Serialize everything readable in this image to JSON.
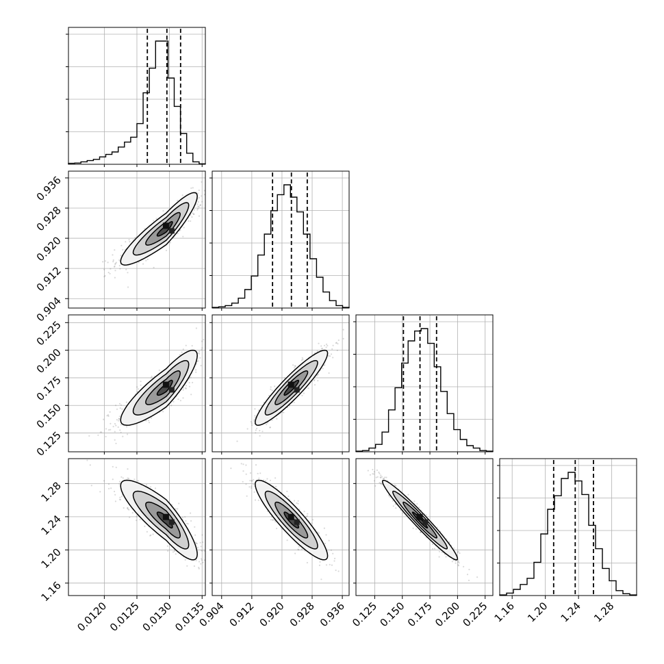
{
  "chart_data": {
    "type": "corner",
    "parameters": [
      {
        "index": 0,
        "range": [
          0.01145,
          0.01355
        ],
        "median": 0.01296,
        "q16": 0.01266,
        "q84": 0.01317,
        "ticks": [
          "0.0120",
          "0.0125",
          "0.0130",
          "0.0135"
        ],
        "hist_counts": [
          0.8,
          1,
          2,
          3,
          4,
          6,
          8,
          10,
          14,
          18,
          22,
          33,
          58,
          78,
          100,
          100,
          70,
          47,
          25,
          9,
          2,
          0.4
        ]
      },
      {
        "index": 1,
        "range": [
          0.9015,
          0.9378
        ],
        "median": 0.9225,
        "q16": 0.9175,
        "q84": 0.9267,
        "ticks": [
          "0.904",
          "0.912",
          "0.920",
          "0.928",
          "0.936"
        ],
        "hist_counts": [
          0.5,
          1,
          2,
          4,
          8,
          15,
          26,
          43,
          60,
          79,
          92,
          100,
          90,
          78,
          60,
          40,
          25,
          13,
          6,
          2,
          0.5
        ]
      },
      {
        "index": 2,
        "range": [
          0.108,
          0.232
        ],
        "median": 0.166,
        "q16": 0.151,
        "q84": 0.181,
        "ticks": [
          "0.125",
          "0.150",
          "0.175",
          "0.200",
          "0.225"
        ],
        "hist_counts": [
          0.5,
          1,
          3,
          6,
          16,
          34,
          52,
          72,
          90,
          98,
          100,
          88,
          69,
          49,
          31,
          18,
          10,
          5,
          3,
          1,
          0.5
        ]
      },
      {
        "index": 3,
        "range": [
          1.145,
          1.31
        ],
        "median": 1.236,
        "q16": 1.21,
        "q84": 1.258,
        "ticks": [
          "1.16",
          "1.20",
          "1.24",
          "1.28"
        ],
        "hist_counts": [
          0.5,
          2,
          5,
          9,
          14,
          27,
          50,
          70,
          81,
          95,
          100,
          93,
          82,
          57,
          38,
          22,
          12,
          4,
          1.5,
          0.5
        ]
      }
    ],
    "pairs": [
      {
        "row": 1,
        "col": 0,
        "mean": [
          0.01295,
          0.9225
        ],
        "sd": [
          0.00028,
          0.0048
        ],
        "corr": 0.9,
        "skew": true
      },
      {
        "row": 2,
        "col": 0,
        "mean": [
          0.01295,
          0.166
        ],
        "sd": [
          0.00028,
          0.017
        ],
        "corr": 0.86,
        "skew": true
      },
      {
        "row": 2,
        "col": 1,
        "mean": [
          0.9225,
          0.166
        ],
        "sd": [
          0.0048,
          0.017
        ],
        "corr": 0.92,
        "skew": false
      },
      {
        "row": 3,
        "col": 0,
        "mean": [
          0.01295,
          1.236
        ],
        "sd": [
          0.00028,
          0.024
        ],
        "corr": -0.86,
        "skew": true
      },
      {
        "row": 3,
        "col": 1,
        "mean": [
          0.9225,
          1.236
        ],
        "sd": [
          0.0048,
          0.024
        ],
        "corr": -0.9,
        "skew": false
      },
      {
        "row": 3,
        "col": 2,
        "mean": [
          0.166,
          1.236
        ],
        "sd": [
          0.017,
          0.024
        ],
        "corr": -0.97,
        "skew": false
      }
    ],
    "grid": true,
    "quantiles": [
      0.16,
      0.5,
      0.84
    ]
  }
}
